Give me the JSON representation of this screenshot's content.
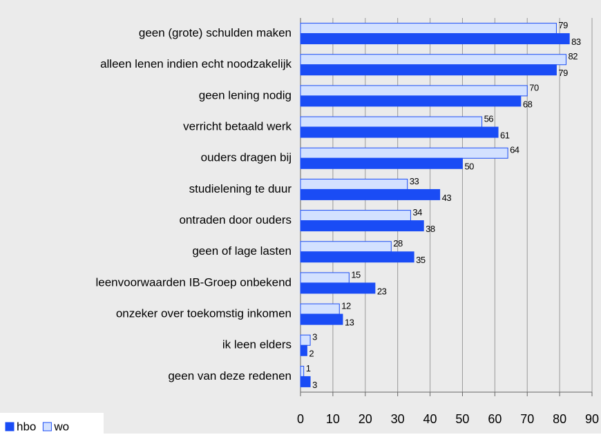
{
  "chart_data": {
    "type": "hbar",
    "categories": [
      "geen (grote) schulden maken",
      "alleen lenen indien echt noodzakelijk",
      "geen lening nodig",
      "verricht betaald werk",
      "ouders dragen bij",
      "studielening te duur",
      "ontraden door ouders",
      "geen of lage lasten",
      "leenvoorwaarden IB-Groep onbekend",
      "onzeker over toekomstig inkomen",
      "ik leen elders",
      "geen van deze redenen"
    ],
    "series": [
      {
        "name": "hbo",
        "color": "#1a4cf5",
        "values": [
          83,
          79,
          68,
          61,
          50,
          43,
          38,
          35,
          23,
          13,
          2,
          3
        ]
      },
      {
        "name": "wo",
        "color": "#d3e1ff",
        "values": [
          79,
          82,
          70,
          56,
          64,
          33,
          34,
          28,
          15,
          12,
          3,
          1
        ]
      }
    ],
    "xlim": [
      0,
      90
    ],
    "xticks": [
      0,
      10,
      20,
      30,
      40,
      50,
      60,
      70,
      80,
      90
    ],
    "grid": true,
    "legend": "bottom-left"
  }
}
